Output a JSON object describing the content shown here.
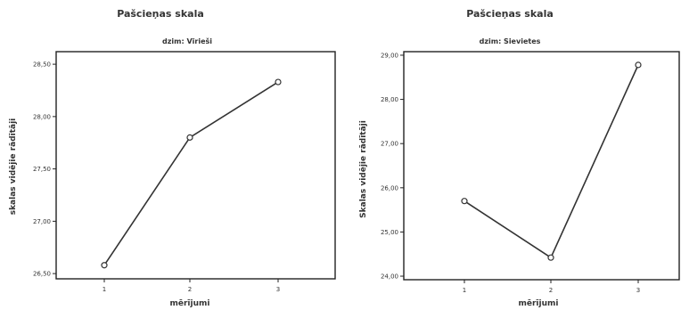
{
  "chart_data": [
    {
      "type": "line",
      "title": "Pašcieņas skala",
      "subtitle": "dzim: Vīrieši",
      "xlabel": "mērījumi",
      "ylabel": "skalas vidējie rādītāji",
      "categories": [
        "1",
        "2",
        "3"
      ],
      "values": [
        26.58,
        27.8,
        28.33
      ],
      "ylim": [
        26.45,
        28.62
      ],
      "yticks": [
        "26,50",
        "27,00",
        "27,50",
        "28,00",
        "28,50"
      ],
      "ytick_values": [
        26.5,
        27.0,
        27.5,
        28.0,
        28.5
      ],
      "grid": false
    },
    {
      "type": "line",
      "title": "Pašcieņas skala",
      "subtitle": "dzim: Sievietes",
      "xlabel": "mērījumi",
      "ylabel": "Skalas vidējie rādītāji",
      "categories": [
        "1",
        "2",
        "3"
      ],
      "values": [
        25.7,
        24.42,
        28.78
      ],
      "ylim": [
        23.92,
        29.08
      ],
      "yticks": [
        "24,00",
        "25,00",
        "26,00",
        "27,00",
        "28,00",
        "29,00"
      ],
      "ytick_values": [
        24,
        25,
        26,
        27,
        28,
        29
      ],
      "grid": false
    }
  ]
}
